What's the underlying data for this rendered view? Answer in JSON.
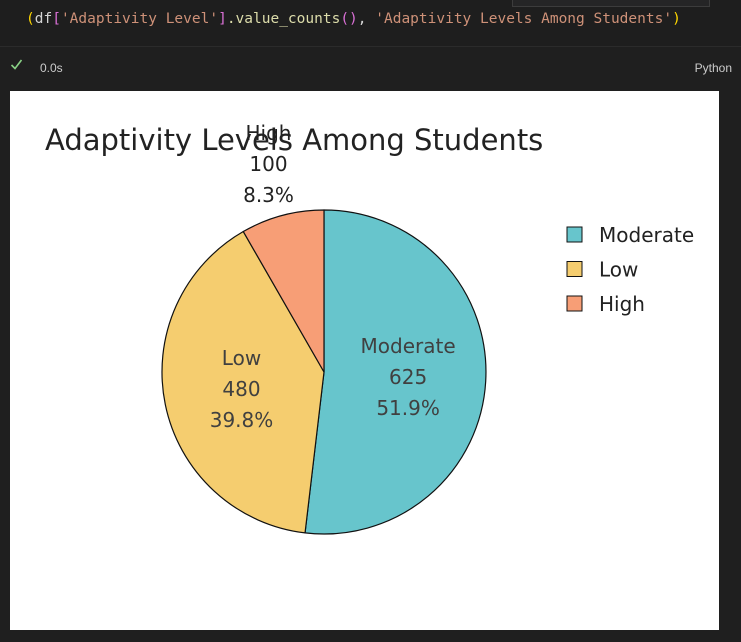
{
  "code_cell": {
    "code": {
      "paren_open": "(",
      "var": "df",
      "bracket_open": "[",
      "column": "'Adaptivity Level'",
      "bracket_close": "]",
      "method": ".value_counts",
      "call_parens": "()",
      "comma": ", ",
      "title_arg": "'Adaptivity Levels Among Students'",
      "paren_close": ")"
    }
  },
  "status": {
    "exec_time": "0.0s",
    "language": "Python",
    "success_color": "#89d185"
  },
  "chart_data": {
    "type": "pie",
    "title": "Adaptivity Levels Among Students",
    "slices": [
      {
        "name": "Moderate",
        "value": 625,
        "percent": "51.9%",
        "color": "#67c5cc"
      },
      {
        "name": "Low",
        "value": 480,
        "percent": "39.8%",
        "color": "#f5cd6f"
      },
      {
        "name": "High",
        "value": 100,
        "percent": "8.3%",
        "color": "#f79e76"
      }
    ],
    "start_angle_deg": 90,
    "direction": "clockwise",
    "legend": {
      "position": "right",
      "entries": [
        "Moderate",
        "Low",
        "High"
      ]
    }
  }
}
